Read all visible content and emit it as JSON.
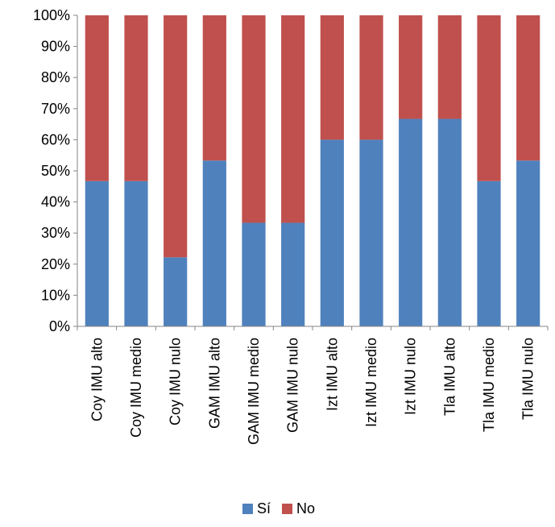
{
  "chart_data": {
    "type": "bar",
    "stacked": true,
    "percent_stacked": true,
    "categories": [
      "Coy IMU alto",
      "Coy IMU medio",
      "Coy IMU nulo",
      "GAM IMU alto",
      "GAM IMU medio",
      "GAM IMU nulo",
      "Izt IMU alto",
      "Izt IMU medio",
      "Izt IMU nulo",
      "Tla IMU alto",
      "Tla IMU medio",
      "Tla IMU nulo"
    ],
    "series": [
      {
        "name": "Sí",
        "color": "#4F81BD",
        "values": [
          46.7,
          46.7,
          22.2,
          53.3,
          33.3,
          33.3,
          60.0,
          60.0,
          66.7,
          66.7,
          46.7,
          53.3
        ]
      },
      {
        "name": "No",
        "color": "#C0504D",
        "values": [
          53.3,
          53.3,
          77.8,
          46.7,
          66.7,
          66.7,
          40.0,
          40.0,
          33.3,
          33.3,
          53.3,
          46.7
        ]
      }
    ],
    "y_ticks": [
      "0%",
      "10%",
      "20%",
      "30%",
      "40%",
      "50%",
      "60%",
      "70%",
      "80%",
      "90%",
      "100%"
    ],
    "ylim": [
      0,
      100
    ],
    "legend_position": "bottom",
    "grid": false
  }
}
